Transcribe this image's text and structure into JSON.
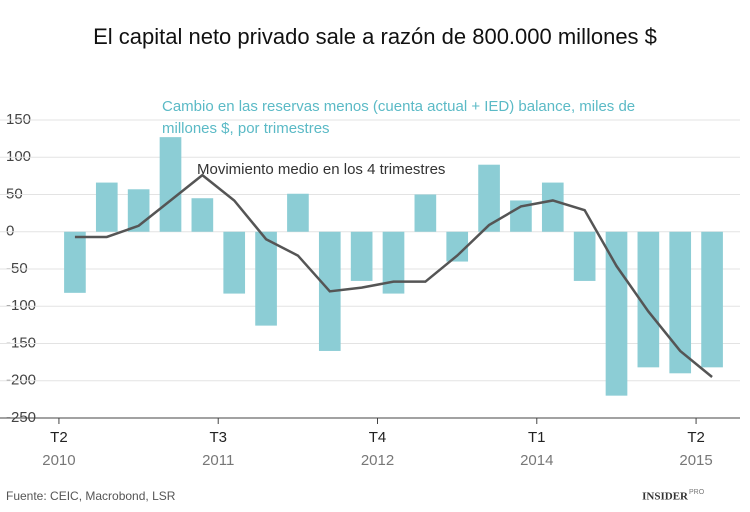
{
  "chart_data": {
    "type": "bar-line",
    "title": "El capital neto privado sale a razón de 800.000 millones $",
    "bar_label": [
      "Cambio en las reservas menos (cuenta actual + IED) balance, miles de",
      "millones $, por trimestres"
    ],
    "line_label": "Movimiento medio en los 4 trimestres",
    "source": "Fuente: CEIC, Macrobond, LSR",
    "logo": "INSIDER",
    "logo_sup": "PRO",
    "categories": [
      "T2",
      null,
      null,
      null,
      null,
      "T3",
      null,
      null,
      null,
      null,
      "T4",
      null,
      null,
      null,
      null,
      "T1",
      null,
      null,
      null,
      null,
      "T2"
    ],
    "category_years": [
      "2010",
      null,
      null,
      null,
      null,
      "2011",
      null,
      null,
      null,
      null,
      "2012",
      null,
      null,
      null,
      null,
      "2014",
      null,
      null,
      null,
      null,
      "2015"
    ],
    "series": [
      {
        "name": "Cambio en las reservas",
        "color": "#8ccdd5",
        "values": [
          -82,
          66,
          57,
          127,
          45,
          -83,
          -126,
          51,
          -160,
          -66,
          -83,
          50,
          -40,
          90,
          42,
          66,
          -66,
          -220,
          -182,
          -190,
          -182
        ]
      },
      {
        "name": "Movimiento medio",
        "color": "#555555",
        "values": [
          -7,
          -7,
          8,
          42,
          76,
          42,
          -10,
          -32,
          -80,
          -75,
          -67,
          -67,
          -32,
          9,
          34,
          42,
          29,
          -46,
          -107,
          -160,
          -195
        ]
      }
    ],
    "ylim": [
      -250,
      150
    ],
    "yticks": [
      -250,
      -200,
      -150,
      -100,
      -50,
      0,
      50,
      100,
      150
    ],
    "grid": true
  }
}
